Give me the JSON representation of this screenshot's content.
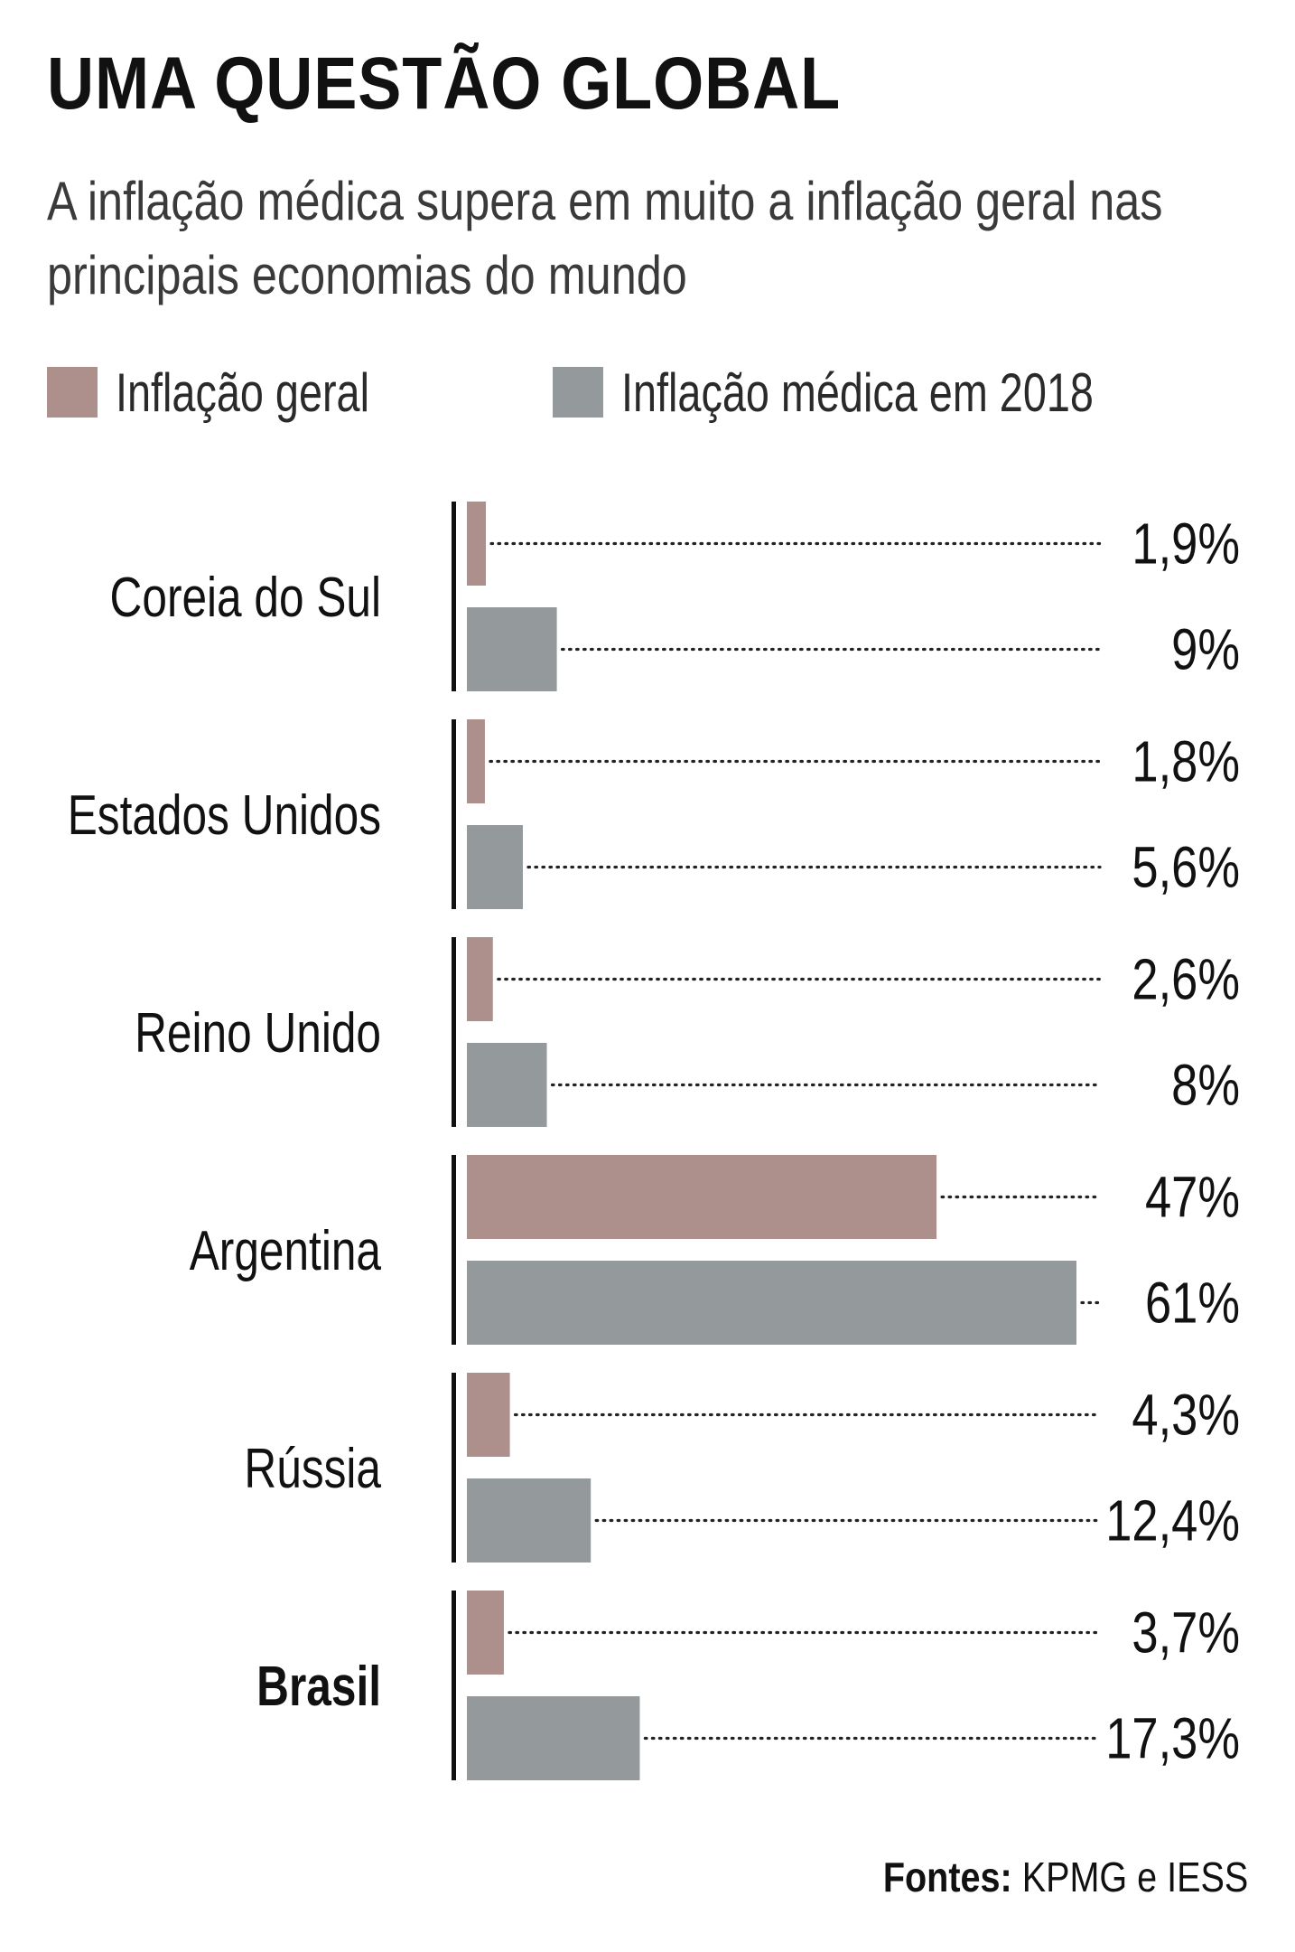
{
  "chart_data": {
    "type": "bar",
    "orientation": "horizontal",
    "title": "UMA QUESTÃO GLOBAL",
    "subtitle": "A inflação médica supera em muito a inflação geral nas principais economias do mundo",
    "categories": [
      "Coreia do Sul",
      "Estados Unidos",
      "Reino Unido",
      "Argentina",
      "Rússia",
      "Brasil"
    ],
    "highlight_category": "Brasil",
    "series": [
      {
        "name": "Inflação geral",
        "color": "#ad8f8c",
        "values": [
          1.9,
          1.8,
          2.6,
          47,
          4.3,
          3.7
        ],
        "labels": [
          "1,9%",
          "1,8%",
          "2,6%",
          "47%",
          "4,3%",
          "3,7%"
        ]
      },
      {
        "name": "Inflação médica em 2018",
        "color": "#949a9c",
        "values": [
          9,
          5.6,
          8,
          61,
          12.4,
          17.3
        ],
        "labels": [
          "9%",
          "5,6%",
          "8%",
          "61%",
          "12,4%",
          "17,3%"
        ]
      }
    ],
    "xlim": [
      0,
      61
    ],
    "grid": false,
    "legend": "top-left",
    "source_label": "Fontes:",
    "source_text": "KPMG e IESS"
  }
}
